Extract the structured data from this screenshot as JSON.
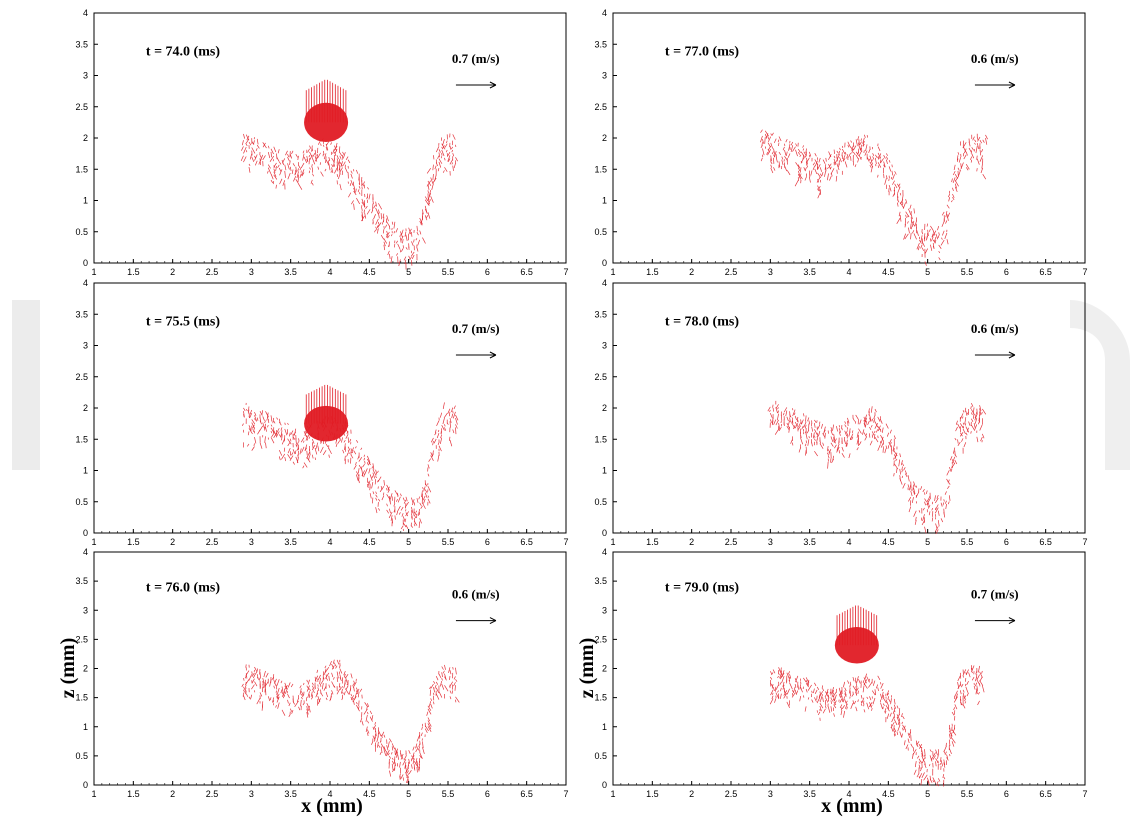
{
  "figure": {
    "x_axis_label": "x (mm)",
    "z_axis_label": "z (mm)",
    "colors": {
      "vector": "#e01b24",
      "axis": "#000000",
      "background": "#ffffff",
      "watermark": "#dcdcdc"
    }
  },
  "chart_data": [
    {
      "type": "scatter",
      "time_label": "t = 74.0 (ms)",
      "scale_label": "0.7 (m/s)",
      "xlim": [
        1,
        7
      ],
      "ylim": [
        0,
        4
      ],
      "x_ticks": [
        "1",
        "1.5",
        "2",
        "2.5",
        "3",
        "3.5",
        "4",
        "4.5",
        "5",
        "5.5",
        "6",
        "6.5",
        "7"
      ],
      "y_ticks": [
        "0",
        "0.5",
        "1",
        "1.5",
        "2",
        "2.5",
        "3",
        "3.5",
        "4"
      ],
      "droplet": {
        "x": 3.95,
        "z": 2.25,
        "rx": 0.28,
        "rz": 0.33
      },
      "surface_profile": [
        [
          2.9,
          2.05
        ],
        [
          3.3,
          1.85
        ],
        [
          3.6,
          1.75
        ],
        [
          3.9,
          1.95
        ],
        [
          4.15,
          1.85
        ],
        [
          4.4,
          1.35
        ],
        [
          4.7,
          0.75
        ],
        [
          4.95,
          0.5
        ],
        [
          5.1,
          0.55
        ],
        [
          5.2,
          1.0
        ],
        [
          5.3,
          1.7
        ],
        [
          5.45,
          2.05
        ],
        [
          5.6,
          2.0
        ]
      ]
    },
    {
      "type": "scatter",
      "time_label": "t = 77.0 (ms)",
      "scale_label": "0.6 (m/s)",
      "xlim": [
        1,
        7
      ],
      "ylim": [
        0,
        4
      ],
      "x_ticks": [
        "1",
        "1.5",
        "2",
        "2.5",
        "3",
        "3.5",
        "4",
        "4.5",
        "5",
        "5.5",
        "6",
        "6.5",
        "7"
      ],
      "y_ticks": [
        "0",
        "0.5",
        "1",
        "1.5",
        "2",
        "2.5",
        "3",
        "3.5",
        "4"
      ],
      "droplet": null,
      "surface_profile": [
        [
          2.9,
          2.1
        ],
        [
          3.3,
          1.95
        ],
        [
          3.6,
          1.7
        ],
        [
          3.9,
          1.85
        ],
        [
          4.2,
          2.05
        ],
        [
          4.45,
          1.8
        ],
        [
          4.7,
          1.1
        ],
        [
          4.95,
          0.6
        ],
        [
          5.15,
          0.55
        ],
        [
          5.3,
          1.2
        ],
        [
          5.4,
          1.9
        ],
        [
          5.6,
          2.05
        ],
        [
          5.75,
          2.0
        ]
      ]
    },
    {
      "type": "scatter",
      "time_label": "t = 75.5 (ms)",
      "scale_label": "0.7 (m/s)",
      "xlim": [
        1,
        7
      ],
      "ylim": [
        0,
        4
      ],
      "x_ticks": [
        "1",
        "1.5",
        "2",
        "2.5",
        "3",
        "3.5",
        "4",
        "4.5",
        "5",
        "5.5",
        "6",
        "6.5",
        "7"
      ],
      "y_ticks": [
        "0",
        "0.5",
        "1",
        "1.5",
        "2",
        "2.5",
        "3",
        "3.5",
        "4"
      ],
      "droplet": {
        "x": 3.95,
        "z": 1.75,
        "rx": 0.28,
        "rz": 0.3
      },
      "surface_profile": [
        [
          2.9,
          2.05
        ],
        [
          3.3,
          1.85
        ],
        [
          3.6,
          1.6
        ],
        [
          3.95,
          1.85
        ],
        [
          4.2,
          1.75
        ],
        [
          4.45,
          1.25
        ],
        [
          4.75,
          0.7
        ],
        [
          5.0,
          0.55
        ],
        [
          5.15,
          0.6
        ],
        [
          5.25,
          1.1
        ],
        [
          5.35,
          1.7
        ],
        [
          5.45,
          2.05
        ],
        [
          5.6,
          2.0
        ]
      ]
    },
    {
      "type": "scatter",
      "time_label": "t = 78.0 (ms)",
      "scale_label": "0.6 (m/s)",
      "xlim": [
        1,
        7
      ],
      "ylim": [
        0,
        4
      ],
      "x_ticks": [
        "1",
        "1.5",
        "2",
        "2.5",
        "3",
        "3.5",
        "4",
        "4.5",
        "5",
        "5.5",
        "6",
        "6.5",
        "7"
      ],
      "y_ticks": [
        "0",
        "0.5",
        "1",
        "1.5",
        "2",
        "2.5",
        "3",
        "3.5",
        "4"
      ],
      "droplet": null,
      "surface_profile": [
        [
          3.0,
          2.1
        ],
        [
          3.4,
          1.9
        ],
        [
          3.75,
          1.65
        ],
        [
          4.05,
          1.85
        ],
        [
          4.3,
          2.0
        ],
        [
          4.55,
          1.6
        ],
        [
          4.8,
          0.8
        ],
        [
          5.05,
          0.6
        ],
        [
          5.2,
          0.6
        ],
        [
          5.3,
          1.2
        ],
        [
          5.4,
          1.9
        ],
        [
          5.55,
          2.05
        ],
        [
          5.7,
          2.0
        ]
      ]
    },
    {
      "type": "scatter",
      "time_label": "t = 76.0 (ms)",
      "scale_label": "0.6 (m/s)",
      "xlim": [
        1,
        7
      ],
      "ylim": [
        0,
        4
      ],
      "x_ticks": [
        "1",
        "1.5",
        "2",
        "2.5",
        "3",
        "3.5",
        "4",
        "4.5",
        "5",
        "5.5",
        "6",
        "6.5",
        "7"
      ],
      "y_ticks": [
        "0",
        "0.5",
        "1",
        "1.5",
        "2",
        "2.5",
        "3",
        "3.5",
        "4"
      ],
      "droplet": null,
      "surface_profile": [
        [
          2.9,
          2.05
        ],
        [
          3.3,
          1.85
        ],
        [
          3.6,
          1.65
        ],
        [
          3.9,
          2.0
        ],
        [
          4.1,
          2.15
        ],
        [
          4.35,
          1.8
        ],
        [
          4.6,
          1.0
        ],
        [
          4.85,
          0.6
        ],
        [
          5.05,
          0.55
        ],
        [
          5.2,
          1.1
        ],
        [
          5.3,
          1.8
        ],
        [
          5.45,
          2.05
        ],
        [
          5.6,
          2.0
        ]
      ]
    },
    {
      "type": "scatter",
      "time_label": "t = 79.0 (ms)",
      "scale_label": "0.7 (m/s)",
      "xlim": [
        1,
        7
      ],
      "ylim": [
        0,
        4
      ],
      "x_ticks": [
        "1",
        "1.5",
        "2",
        "2.5",
        "3",
        "3.5",
        "4",
        "4.5",
        "5",
        "5.5",
        "6",
        "6.5",
        "7"
      ],
      "y_ticks": [
        "0",
        "0.5",
        "1",
        "1.5",
        "2",
        "2.5",
        "3",
        "3.5",
        "4"
      ],
      "droplet": {
        "x": 4.1,
        "z": 2.4,
        "rx": 0.28,
        "rz": 0.33
      },
      "surface_profile": [
        [
          3.0,
          2.05
        ],
        [
          3.4,
          1.85
        ],
        [
          3.75,
          1.6
        ],
        [
          4.1,
          1.85
        ],
        [
          4.35,
          1.9
        ],
        [
          4.6,
          1.4
        ],
        [
          4.85,
          0.75
        ],
        [
          5.05,
          0.55
        ],
        [
          5.2,
          0.6
        ],
        [
          5.3,
          1.2
        ],
        [
          5.4,
          1.9
        ],
        [
          5.55,
          2.05
        ],
        [
          5.7,
          2.0
        ]
      ]
    }
  ]
}
